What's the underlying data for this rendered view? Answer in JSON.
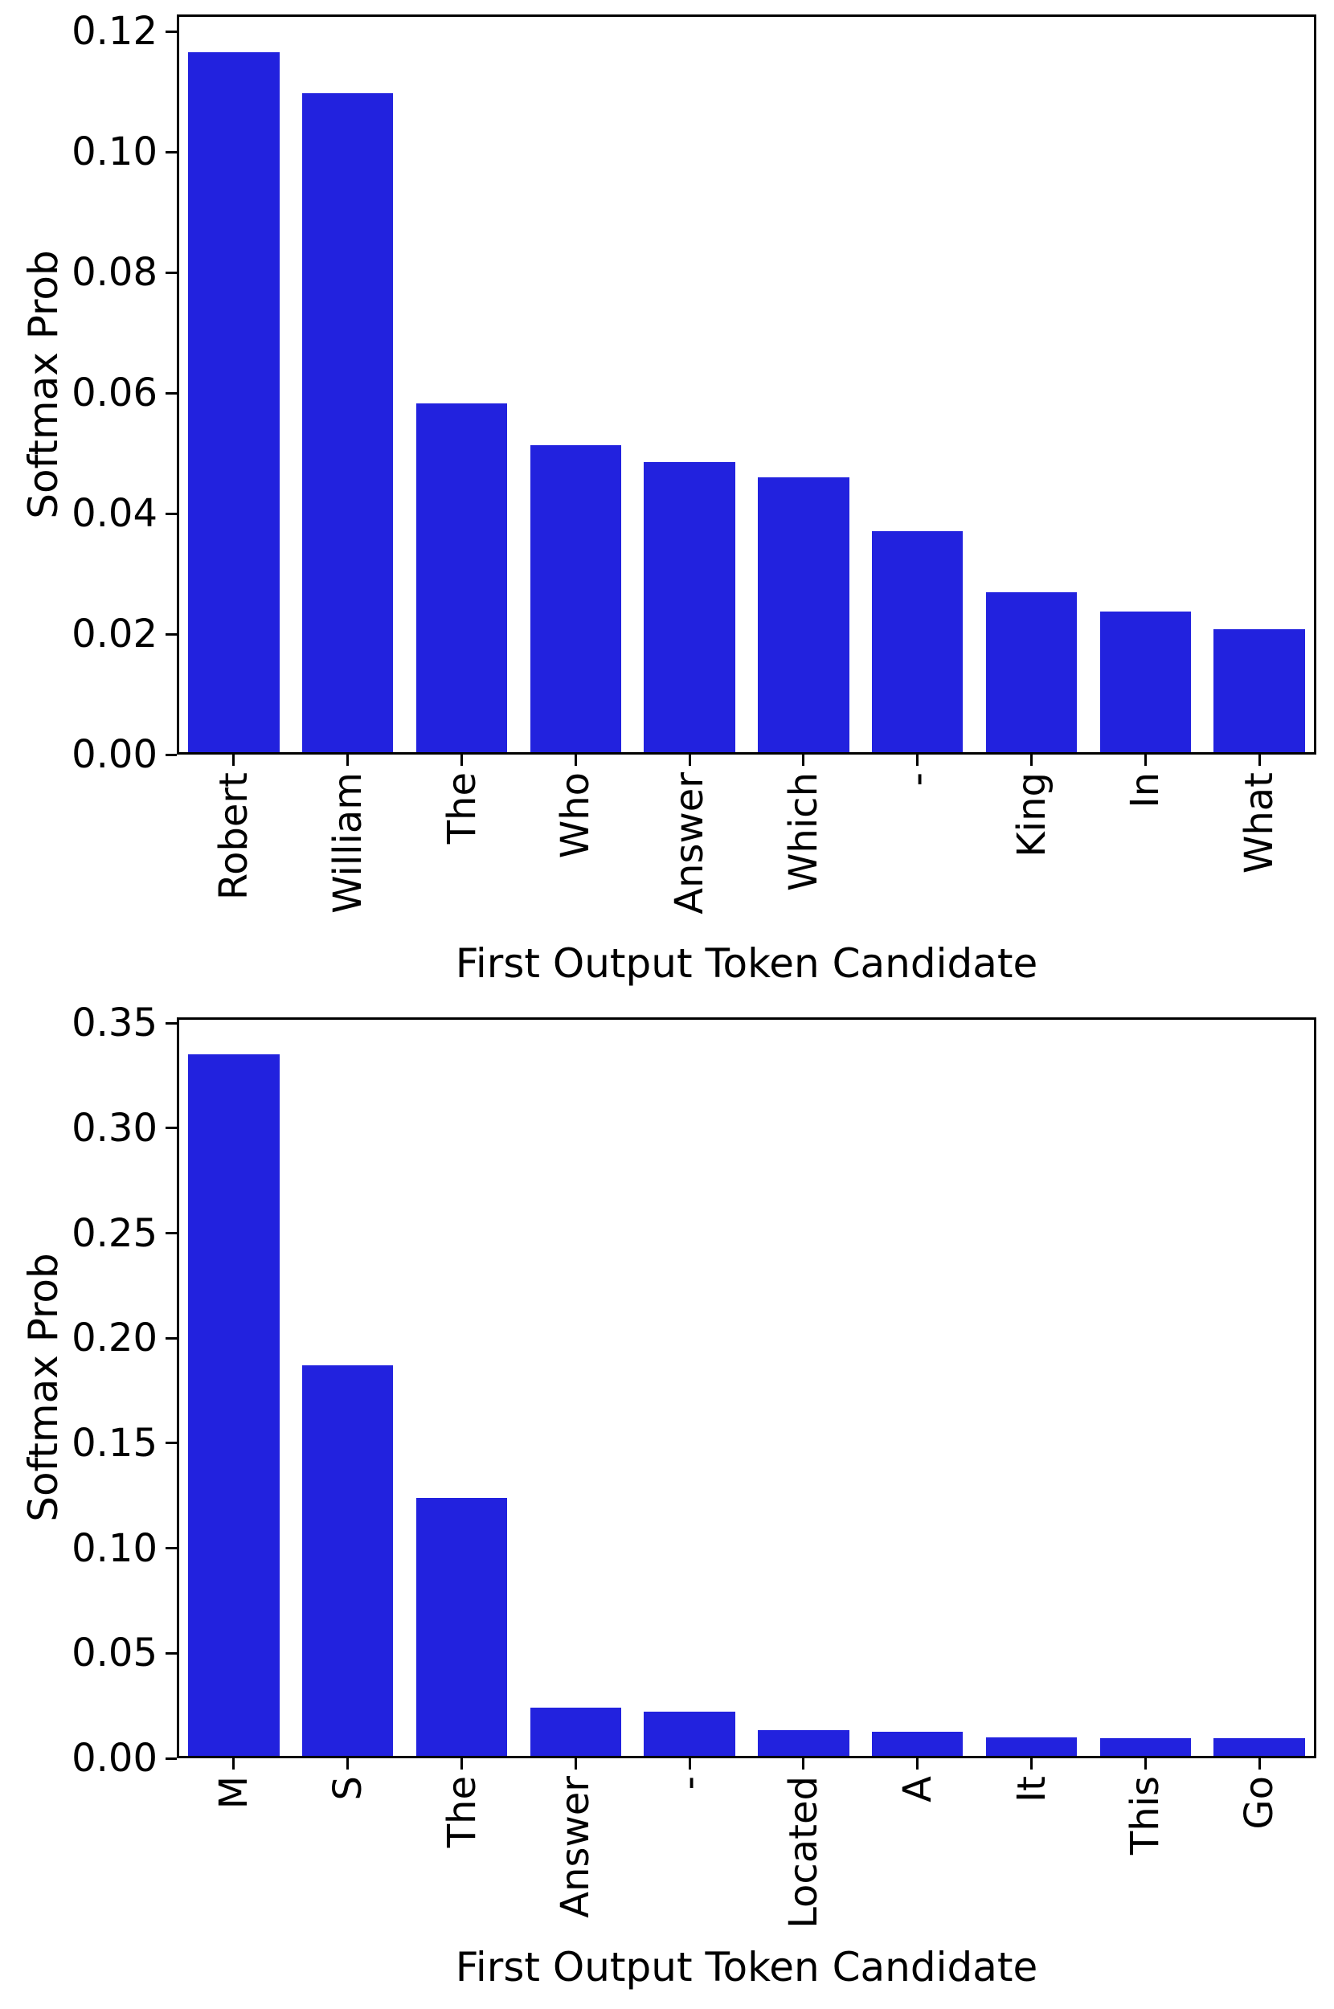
{
  "chart_data": [
    {
      "type": "bar",
      "title": "",
      "xlabel": "First Output Token Candidate",
      "ylabel": "Softmax Prob",
      "categories": [
        "Robert",
        "William",
        "The",
        "Who",
        "Answer",
        "Which",
        "-",
        "King",
        "In",
        "What"
      ],
      "values": [
        0.1165,
        0.1097,
        0.0582,
        0.0513,
        0.0485,
        0.046,
        0.0371,
        0.0269,
        0.0237,
        0.0208
      ],
      "ylim": [
        0,
        0.1228
      ],
      "yticks": [
        0.0,
        0.02,
        0.04,
        0.06,
        0.08,
        0.1,
        0.12
      ],
      "ytick_labels": [
        "0.00",
        "0.02",
        "0.04",
        "0.06",
        "0.08",
        "0.10",
        "0.12"
      ],
      "grid": false,
      "legend": "none",
      "bar_color": "#2222DE",
      "axis_color": "#000000"
    },
    {
      "type": "bar",
      "title": "",
      "xlabel": "First Output Token Candidate",
      "ylabel": "Softmax Prob",
      "categories": [
        "M",
        "S",
        "The",
        "Answer",
        "-",
        "Located",
        "A",
        "It",
        "This",
        "Go"
      ],
      "values": [
        0.335,
        0.1872,
        0.1238,
        0.024,
        0.0221,
        0.0134,
        0.0126,
        0.01,
        0.0096,
        0.0096
      ],
      "ylim": [
        0,
        0.3527
      ],
      "yticks": [
        0.0,
        0.05,
        0.1,
        0.15,
        0.2,
        0.25,
        0.3,
        0.35
      ],
      "ytick_labels": [
        "0.00",
        "0.05",
        "0.10",
        "0.15",
        "0.20",
        "0.25",
        "0.30",
        "0.35"
      ],
      "grid": false,
      "legend": "none",
      "bar_color": "#2222DE",
      "axis_color": "#000000"
    }
  ]
}
